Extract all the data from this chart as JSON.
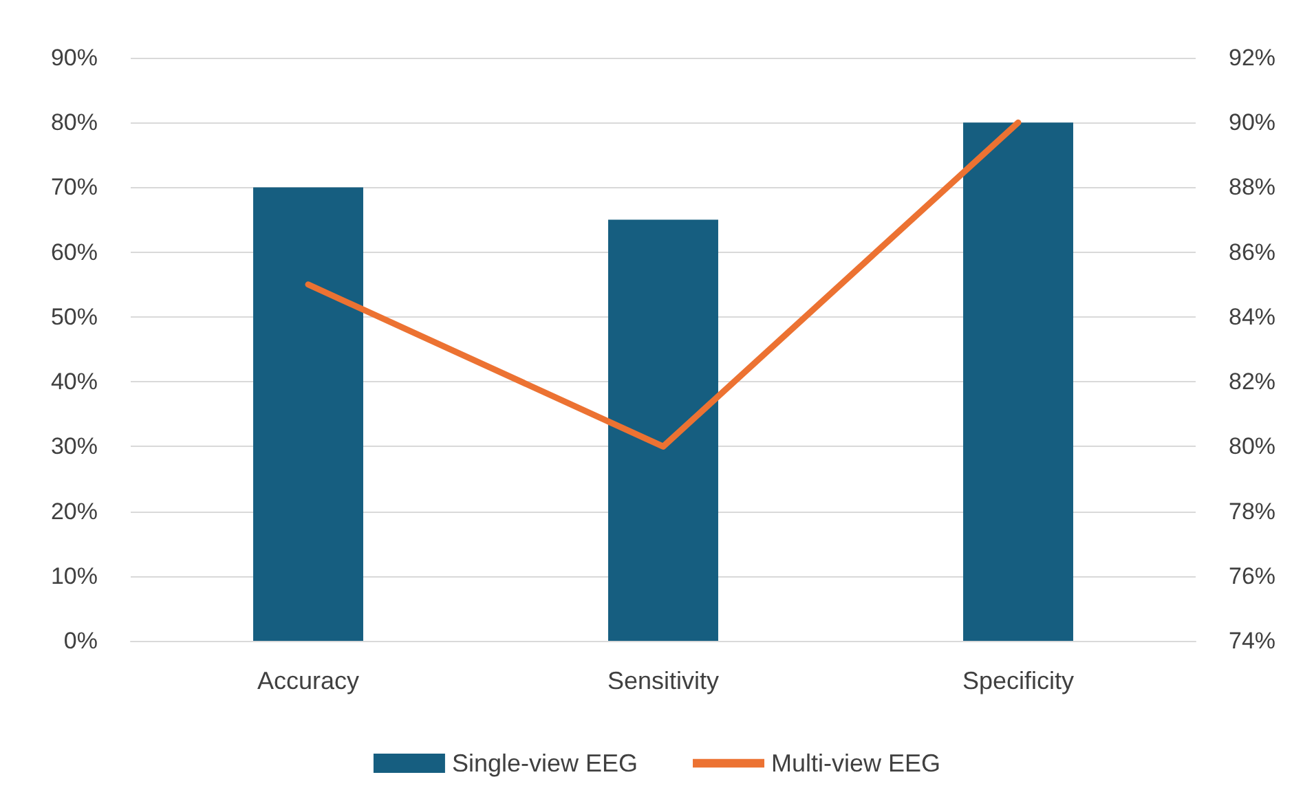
{
  "chart_data": {
    "type": "bar",
    "categories": [
      "Accuracy",
      "Sensitivity",
      "Specificity"
    ],
    "series": [
      {
        "name": "Single-view EEG",
        "color": "#165e80",
        "values": [
          70,
          65,
          80
        ]
      },
      {
        "name": "Multi-view EEG",
        "type": "line",
        "axis": "y2",
        "color": "#ec7232",
        "values": [
          85,
          80,
          90
        ]
      }
    ],
    "ylim": [
      0,
      90
    ],
    "yticks": [
      {
        "value": 0,
        "label": "0%"
      },
      {
        "value": 10,
        "label": "10%"
      },
      {
        "value": 20,
        "label": "20%"
      },
      {
        "value": 30,
        "label": "30%"
      },
      {
        "value": 40,
        "label": "40%"
      },
      {
        "value": 50,
        "label": "50%"
      },
      {
        "value": 60,
        "label": "60%"
      },
      {
        "value": 70,
        "label": "70%"
      },
      {
        "value": 80,
        "label": "80%"
      },
      {
        "value": 90,
        "label": "90%"
      }
    ],
    "y2lim": [
      74,
      92
    ],
    "y2ticks": [
      {
        "value": 74,
        "label": "74%"
      },
      {
        "value": 76,
        "label": "76%"
      },
      {
        "value": 78,
        "label": "78%"
      },
      {
        "value": 80,
        "label": "80%"
      },
      {
        "value": 82,
        "label": "82%"
      },
      {
        "value": 84,
        "label": "84%"
      },
      {
        "value": 86,
        "label": "86%"
      },
      {
        "value": 88,
        "label": "88%"
      },
      {
        "value": 90,
        "label": "90%"
      },
      {
        "value": 92,
        "label": "92%"
      }
    ],
    "grid": "y",
    "legend": "bottom",
    "marker": "none",
    "line_style": "solid"
  }
}
